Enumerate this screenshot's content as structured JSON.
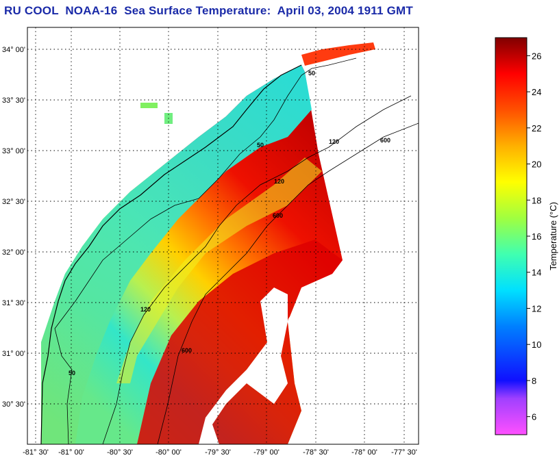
{
  "title": "RU COOL  NOAA-16  Sea Surface Temperature:  April 03, 2004 1911 GMT",
  "map": {
    "lat_labels": [
      "34° 00'",
      "33° 30'",
      "33° 00'",
      "32° 30'",
      "32° 00'",
      "31° 30'",
      "31° 00'",
      "30° 30'"
    ],
    "lon_labels": [
      "-81° 30'",
      "-81° 00'",
      "-80° 30'",
      "-80° 00'",
      "-79° 30'",
      "-79° 00'",
      "-78° 30'",
      "-78° 00'",
      "-77° 30'"
    ],
    "isobath_labels": [
      "50",
      "120",
      "600"
    ],
    "colors": {
      "land": "#ffffff",
      "coast": "#000000",
      "grid": "#000000"
    }
  },
  "colorbar": {
    "label": "Temperature (°C)",
    "ticks": [
      "26",
      "24",
      "22",
      "20",
      "18",
      "16",
      "14",
      "12",
      "10",
      "8",
      "6"
    ],
    "tick_values": [
      26,
      24,
      22,
      20,
      18,
      16,
      14,
      12,
      10,
      8,
      6
    ],
    "min": 5,
    "max": 27,
    "stops": [
      {
        "t": 5,
        "c": "#ff50ff"
      },
      {
        "t": 7,
        "c": "#a040ff"
      },
      {
        "t": 8,
        "c": "#1010ff"
      },
      {
        "t": 11,
        "c": "#0080ff"
      },
      {
        "t": 13,
        "c": "#00e0ff"
      },
      {
        "t": 15,
        "c": "#40ffb0"
      },
      {
        "t": 17,
        "c": "#a0ff40"
      },
      {
        "t": 19,
        "c": "#ffff00"
      },
      {
        "t": 21,
        "c": "#ffb000"
      },
      {
        "t": 23,
        "c": "#ff5000"
      },
      {
        "t": 25,
        "c": "#ff0000"
      },
      {
        "t": 27,
        "c": "#800000"
      }
    ]
  }
}
